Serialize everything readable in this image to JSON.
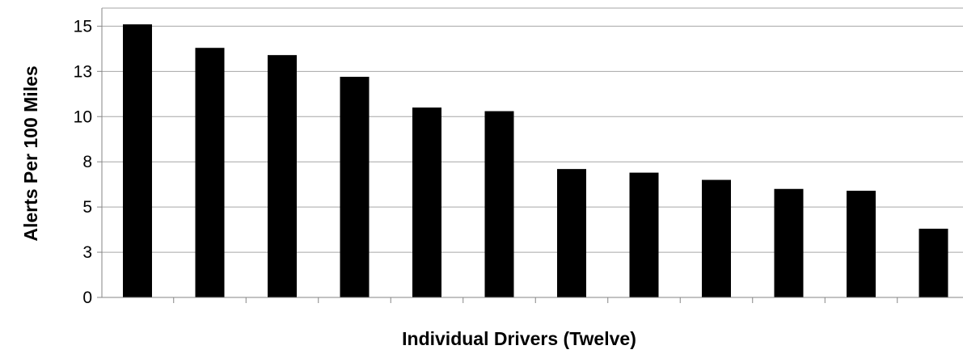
{
  "chart_data": {
    "type": "bar",
    "xlabel": "Individual Drivers (Twelve)",
    "ylabel": "Alerts Per 100 Miles",
    "ylim": [
      0,
      16
    ],
    "yticks": [
      0,
      2.5,
      5,
      7.5,
      10,
      12.5,
      15
    ],
    "ytick_labels": [
      "0",
      "3",
      "5",
      "8",
      "10",
      "13",
      "15"
    ],
    "categories": [
      "",
      "",
      "",
      "",
      "",
      "",
      "",
      "",
      "",
      "",
      "",
      ""
    ],
    "values": [
      15.1,
      13.8,
      13.4,
      12.2,
      10.5,
      10.3,
      7.1,
      6.9,
      6.5,
      6.0,
      5.9,
      3.8
    ],
    "grid": true,
    "legend": "none",
    "bar_color": "#000000",
    "grid_color": "#a6a6a6",
    "axis_color": "#868686"
  }
}
